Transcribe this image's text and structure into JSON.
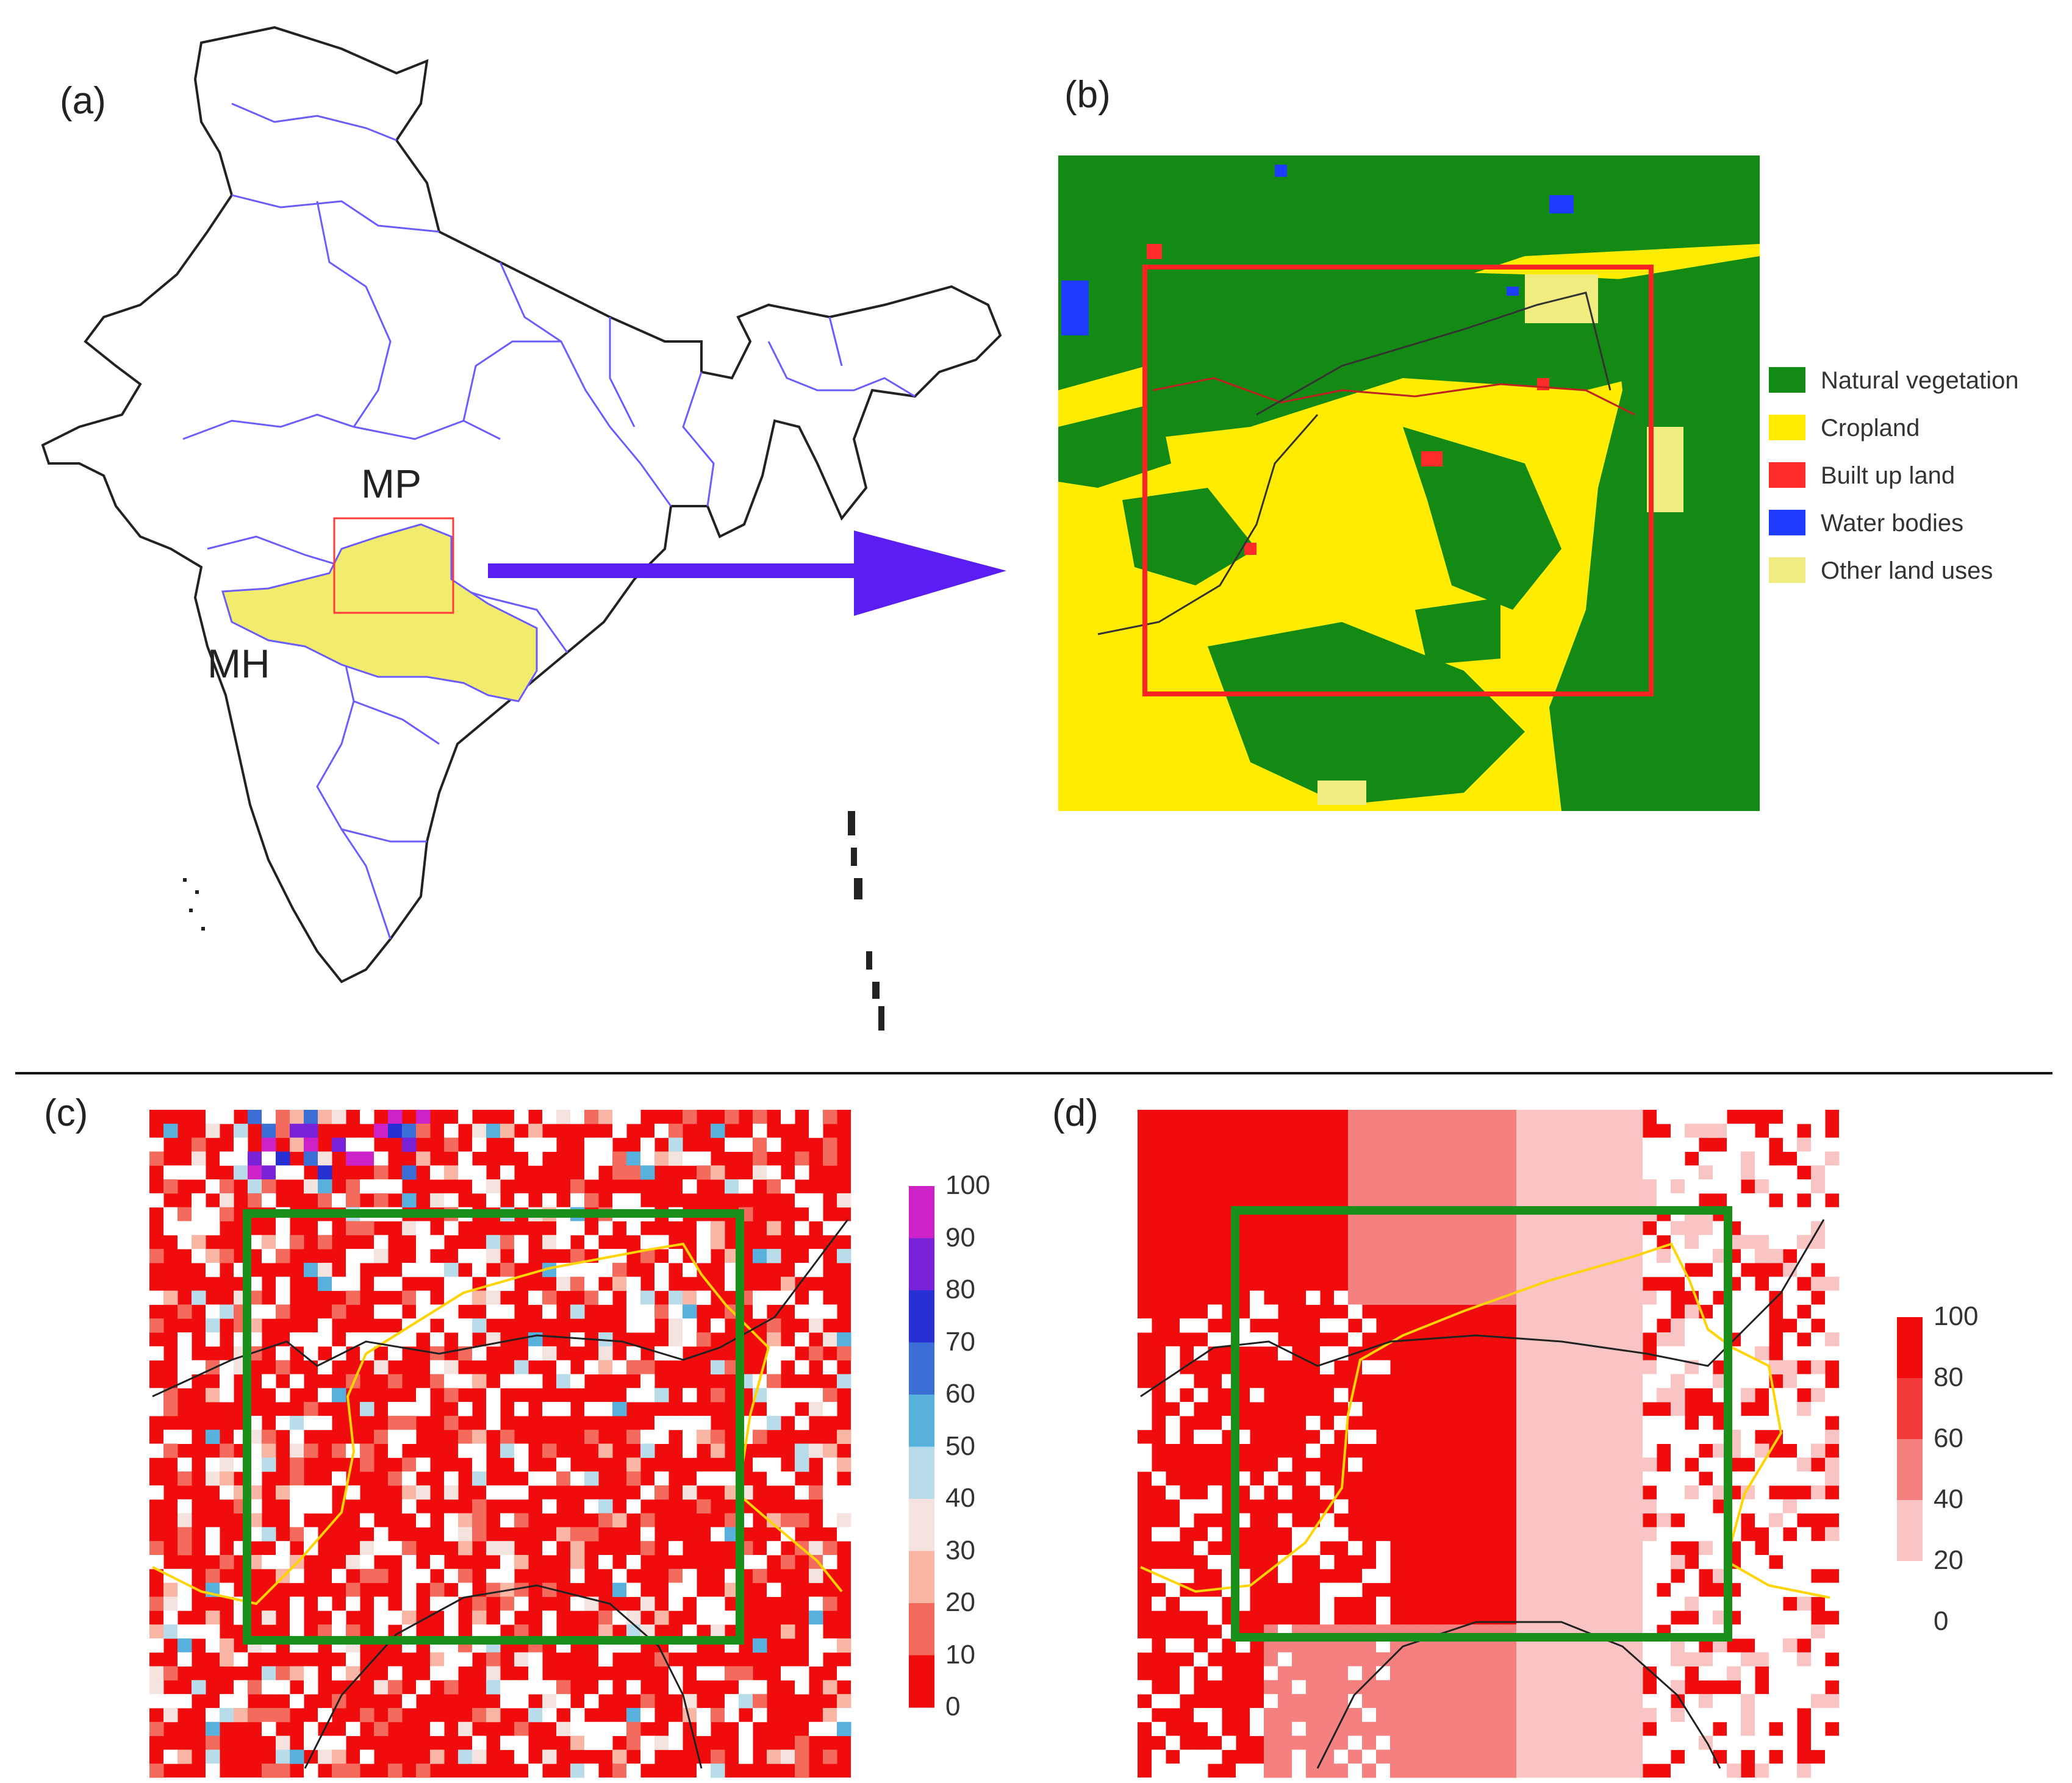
{
  "panels": {
    "a": "(a)",
    "b": "(b)",
    "c": "(c)",
    "d": "(d)"
  },
  "map_a": {
    "states": [
      "MP",
      "MH"
    ],
    "colors": {
      "outline": "#222222",
      "state_borders": "#6a5cff",
      "study_states": "#f2ec6e",
      "study_box": "#ff3b3b",
      "arrow": "#5a1ef2"
    }
  },
  "map_b": {
    "legend": [
      {
        "label": "Natural vegetation",
        "color": "#138a13"
      },
      {
        "label": "Cropland",
        "color": "#ffec00"
      },
      {
        "label": "Built up land",
        "color": "#ff2a2a"
      },
      {
        "label": "Water bodies",
        "color": "#1e3cff"
      },
      {
        "label": "Other land uses",
        "color": "#f0ec80"
      }
    ],
    "box_color": "#ff2222"
  },
  "map_c": {
    "colorbar_ticks": [
      "100",
      "90",
      "80",
      "70",
      "60",
      "50",
      "40",
      "30",
      "20",
      "10",
      "0"
    ],
    "colorbar_colors": [
      "#cc22c8",
      "#7a22d8",
      "#2630d4",
      "#3b6fd6",
      "#58b0dc",
      "#b9dceb",
      "#f5e3e0",
      "#f9b6a5",
      "#f46a5c",
      "#f00c0c"
    ],
    "box_color": "#1a8f1a",
    "line_color": "#ffd400"
  },
  "map_d": {
    "colorbar_ticks": [
      "100",
      "80",
      "60",
      "40",
      "20",
      "0"
    ],
    "colorbar_colors": [
      "#f00c0c",
      "#f23a3a",
      "#f58080",
      "#f9c4c4",
      "#ffffff"
    ],
    "box_color": "#1a8f1a",
    "line_color": "#ffd400"
  }
}
